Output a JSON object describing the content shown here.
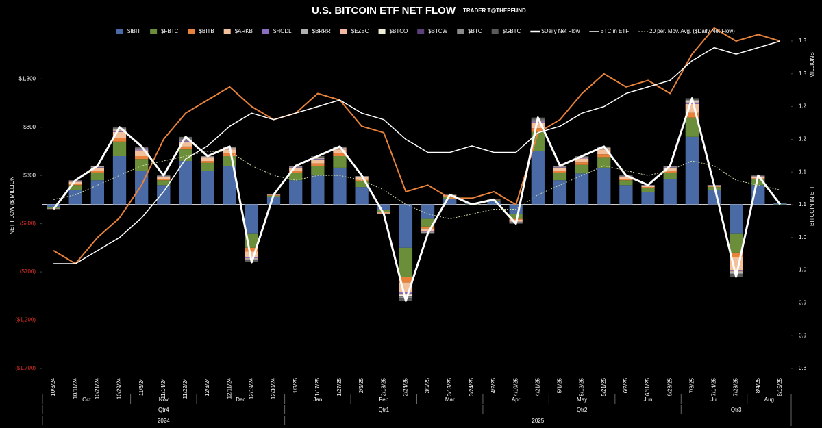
{
  "chart_data": {
    "type": "combo",
    "title": "U.S. BITCOIN ETF NET FLOW",
    "subtitle": "TRADER T@THEPFUND",
    "y_label": "NET FLOW ($)MILLION",
    "y2_label": "BITCOIN IN ETF",
    "y2_unit": "MILLIONS",
    "categories": [
      "10/3/24",
      "10/11/24",
      "10/21/24",
      "10/29/24",
      "11/6/24",
      "11/14/24",
      "11/22/24",
      "12/3/24",
      "12/11/24",
      "12/19/24",
      "12/30/24",
      "1/8/25",
      "1/17/25",
      "1/27/25",
      "2/5/25",
      "2/13/25",
      "2/24/25",
      "3/5/25",
      "3/13/25",
      "3/24/25",
      "4/2/25",
      "4/10/25",
      "4/21/25",
      "5/1/25",
      "5/12/25",
      "5/21/25",
      "6/2/25",
      "6/11/25",
      "6/23/25",
      "7/3/25",
      "7/14/25",
      "7/23/25",
      "8/4/25",
      "8/15/25"
    ],
    "months": [
      "Oct",
      "Nov",
      "Dec",
      "Jan",
      "Feb",
      "Mar",
      "Apr",
      "May",
      "Jun",
      "Jul",
      "Aug"
    ],
    "quarters": [
      "Qtr4",
      "Qtr1",
      "Qtr2",
      "Qtr3"
    ],
    "years": [
      "2024",
      "2025"
    ],
    "ylim": [
      -1700,
      1600
    ],
    "yticks": [
      {
        "value": 1300,
        "label": "$1,300"
      },
      {
        "value": 800,
        "label": "$800"
      },
      {
        "value": 300,
        "label": "$300"
      },
      {
        "value": -200,
        "label": "($200)"
      },
      {
        "value": -700,
        "label": "($700)"
      },
      {
        "value": -1200,
        "label": "($1,200)"
      },
      {
        "value": -1700,
        "label": "($1,700)"
      }
    ],
    "y2lim": [
      0.8,
      1.3
    ],
    "y2ticks": [
      1.3,
      {
        "value": 1.25,
        "label": "1.3"
      },
      1.2,
      {
        "value": 1.15,
        "label": "1.2"
      },
      1.1,
      {
        "value": 1.05,
        "label": "1.1"
      },
      {
        "value": 1,
        "label": "1.0"
      },
      {
        "value": 0.95,
        "label": "1.0"
      },
      0.9,
      {
        "value": 0.85,
        "label": "0.9"
      },
      0.8
    ],
    "series": [
      {
        "name": "$IBIT",
        "type": "bar",
        "color": "#4a6aa5",
        "values": [
          -30,
          150,
          250,
          500,
          350,
          200,
          450,
          350,
          400,
          -300,
          80,
          250,
          300,
          380,
          180,
          -60,
          -450,
          -150,
          60,
          10,
          40,
          -100,
          550,
          250,
          320,
          380,
          200,
          130,
          260,
          700,
          150,
          -300,
          200,
          10
        ]
      },
      {
        "name": "$FBTC",
        "type": "bar",
        "color": "#6b8e3a",
        "values": [
          -10,
          50,
          80,
          150,
          120,
          50,
          120,
          80,
          100,
          -150,
          10,
          80,
          100,
          120,
          60,
          -20,
          -300,
          -80,
          20,
          -5,
          5,
          -50,
          200,
          80,
          90,
          110,
          50,
          40,
          70,
          200,
          30,
          -200,
          60,
          -5
        ]
      },
      {
        "name": "$BITB",
        "type": "bar",
        "color": "#e8823a",
        "values": [
          0,
          15,
          20,
          40,
          30,
          15,
          30,
          20,
          30,
          -40,
          5,
          20,
          25,
          30,
          15,
          -5,
          -60,
          -20,
          5,
          0,
          2,
          -10,
          40,
          20,
          25,
          30,
          15,
          10,
          20,
          50,
          5,
          -50,
          10,
          0
        ]
      },
      {
        "name": "$ARKB",
        "type": "bar",
        "color": "#f2c09a",
        "values": [
          -5,
          20,
          30,
          60,
          60,
          20,
          50,
          30,
          40,
          -60,
          5,
          30,
          40,
          40,
          25,
          -10,
          -100,
          -30,
          10,
          -5,
          3,
          -20,
          60,
          30,
          40,
          50,
          20,
          15,
          30,
          90,
          10,
          -130,
          20,
          -5
        ]
      },
      {
        "name": "$HODL",
        "type": "bar",
        "color": "#8a6cc0",
        "values": [
          0,
          5,
          5,
          10,
          8,
          4,
          8,
          5,
          6,
          -8,
          1,
          4,
          5,
          6,
          3,
          -1,
          -15,
          -4,
          1,
          0,
          0,
          -3,
          8,
          4,
          5,
          6,
          3,
          2,
          4,
          10,
          2,
          -10,
          3,
          0
        ]
      },
      {
        "name": "$BRRR",
        "type": "bar",
        "color": "#b0b0b0",
        "values": [
          0,
          2,
          3,
          5,
          4,
          2,
          4,
          2,
          3,
          -3,
          0,
          2,
          3,
          3,
          2,
          0,
          -5,
          -2,
          0,
          0,
          0,
          -1,
          3,
          2,
          2,
          3,
          1,
          1,
          2,
          4,
          1,
          -4,
          1,
          0
        ]
      },
      {
        "name": "$EZBC",
        "type": "bar",
        "color": "#f4b8a0",
        "values": [
          0,
          2,
          3,
          6,
          4,
          2,
          4,
          3,
          4,
          -4,
          0,
          2,
          3,
          4,
          2,
          0,
          -8,
          -2,
          1,
          0,
          0,
          -1,
          4,
          2,
          3,
          3,
          2,
          1,
          2,
          6,
          1,
          -5,
          1,
          0
        ]
      },
      {
        "name": "$BTCO",
        "type": "bar",
        "color": "#eeeed8",
        "values": [
          0,
          2,
          3,
          5,
          4,
          2,
          4,
          3,
          4,
          -5,
          0,
          2,
          3,
          3,
          2,
          0,
          -10,
          -3,
          1,
          0,
          0,
          -2,
          5,
          2,
          3,
          3,
          2,
          1,
          2,
          7,
          1,
          -6,
          1,
          0
        ]
      },
      {
        "name": "$BTCW",
        "type": "bar",
        "color": "#5a3f7a",
        "values": [
          0,
          1,
          1,
          2,
          2,
          1,
          2,
          1,
          1,
          -1,
          0,
          1,
          1,
          1,
          1,
          0,
          -2,
          -1,
          0,
          0,
          0,
          0,
          1,
          1,
          1,
          1,
          1,
          0,
          1,
          2,
          0,
          -1,
          0,
          0
        ]
      },
      {
        "name": "$BTC",
        "type": "bar",
        "color": "#8a8a8a",
        "values": [
          0,
          3,
          5,
          10,
          8,
          4,
          10,
          6,
          6,
          -10,
          2,
          5,
          6,
          8,
          4,
          0,
          -20,
          -5,
          2,
          0,
          0,
          -3,
          10,
          5,
          6,
          7,
          4,
          2,
          5,
          15,
          2,
          -15,
          2,
          0
        ]
      },
      {
        "name": "$GBTC",
        "type": "bar",
        "color": "#5a5a5a",
        "values": [
          -5,
          0,
          0,
          12,
          0,
          0,
          18,
          0,
          6,
          -19,
          -3,
          0,
          14,
          5,
          0,
          -4,
          -30,
          -3,
          0,
          0,
          0,
          -10,
          19,
          4,
          5,
          7,
          2,
          0,
          4,
          16,
          -2,
          -29,
          2,
          0
        ]
      },
      {
        "type": "line",
        "axis": "y2",
        "color": "#e8823a",
        "width": 2,
        "values": [
          0.98,
          0.96,
          1.0,
          1.03,
          1.08,
          1.15,
          1.19,
          1.21,
          1.23,
          1.2,
          1.18,
          1.19,
          1.22,
          1.21,
          1.17,
          1.16,
          1.07,
          1.08,
          1.06,
          1.06,
          1.07,
          1.05,
          1.16,
          1.18,
          1.22,
          1.25,
          1.23,
          1.24,
          1.22,
          1.28,
          1.32,
          1.3,
          1.31,
          1.3
        ]
      },
      {
        "name": "$Daily Net Flow",
        "type": "line",
        "color": "#ffffff",
        "width": 3,
        "values": [
          -50,
          250,
          400,
          800,
          600,
          300,
          700,
          500,
          600,
          -600,
          100,
          400,
          500,
          600,
          300,
          -100,
          -1000,
          -300,
          100,
          0,
          50,
          -200,
          900,
          400,
          500,
          600,
          300,
          200,
          400,
          1100,
          200,
          -750,
          300,
          0
        ]
      },
      {
        "name": "BTC in ETF",
        "type": "line",
        "axis": "y2",
        "color": "#ffffff",
        "width": 1.5,
        "values": [
          0.96,
          0.96,
          0.98,
          1.0,
          1.03,
          1.07,
          1.12,
          1.14,
          1.17,
          1.19,
          1.18,
          1.19,
          1.2,
          1.21,
          1.19,
          1.18,
          1.15,
          1.13,
          1.13,
          1.14,
          1.13,
          1.13,
          1.16,
          1.17,
          1.19,
          1.2,
          1.22,
          1.23,
          1.24,
          1.27,
          1.29,
          1.28,
          1.29,
          1.3
        ]
      },
      {
        "name": "20 per. Mov. Avg. ($Daily Net Flow)",
        "type": "line",
        "color": "#cfd8a8",
        "width": 1,
        "style": "dotted",
        "values": [
          50,
          100,
          200,
          300,
          400,
          450,
          500,
          550,
          550,
          400,
          300,
          250,
          300,
          300,
          250,
          150,
          0,
          -100,
          -150,
          -100,
          -50,
          -50,
          100,
          200,
          300,
          400,
          350,
          300,
          350,
          450,
          400,
          250,
          200,
          150
        ]
      }
    ]
  }
}
